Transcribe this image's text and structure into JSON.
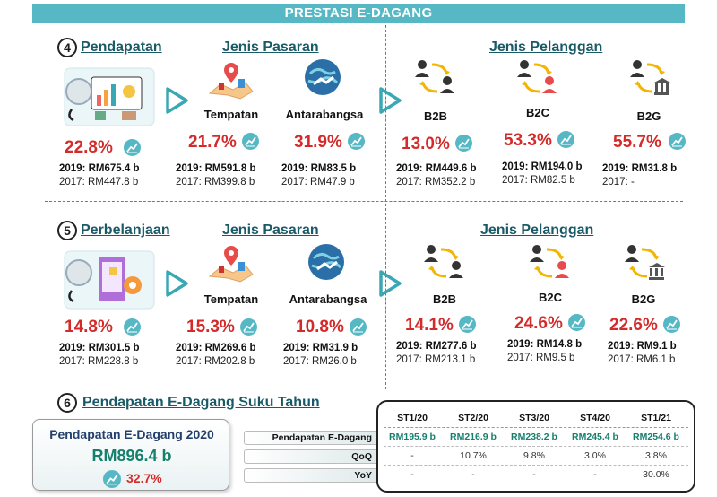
{
  "banner": "PRESTASI E-DAGANG",
  "colors": {
    "teal": "#55b8c4",
    "red": "#d42a2a",
    "title": "#1a5a66",
    "value_green": "#15806e"
  },
  "sec4": {
    "num": "4",
    "title": "Pendapatan",
    "market_title": "Jenis Pasaran",
    "customer_title": "Jenis Pelanggan",
    "total": {
      "pct": "22.8%",
      "y2019": "2019: RM675.4 b",
      "y2017": "2017: RM447.8 b"
    },
    "tempatan": {
      "label": "Tempatan",
      "pct": "21.7%",
      "y2019": "2019: RM591.8 b",
      "y2017": "2017: RM399.8 b"
    },
    "antarabangsa": {
      "label": "Antarabangsa",
      "pct": "31.9%",
      "y2019": "2019: RM83.5  b",
      "y2017": "2017: RM47.9  b"
    },
    "b2b": {
      "label": "B2B",
      "pct": "13.0%",
      "y2019": "2019: RM449.6 b",
      "y2017": "2017: RM352.2 b"
    },
    "b2c": {
      "label": "B2C",
      "pct": "53.3%",
      "y2019": "2019: RM194.0 b",
      "y2017": "2017: RM82.5   b"
    },
    "b2g": {
      "label": "B2G",
      "pct": "55.7%",
      "y2019": "2019: RM31.8 b",
      "y2017": "2017:        -"
    }
  },
  "sec5": {
    "num": "5",
    "title": "Perbelanjaan",
    "market_title": "Jenis Pasaran",
    "customer_title": "Jenis Pelanggan",
    "total": {
      "pct": "14.8%",
      "y2019": "2019: RM301.5 b",
      "y2017": "2017: RM228.8 b"
    },
    "tempatan": {
      "label": "Tempatan",
      "pct": "15.3%",
      "y2019": "2019: RM269.6 b",
      "y2017": "2017: RM202.8 b"
    },
    "antarabangsa": {
      "label": "Antarabangsa",
      "pct": "10.8%",
      "y2019": "2019: RM31.9 b",
      "y2017": "2017: RM26.0 b"
    },
    "b2b": {
      "label": "B2B",
      "pct": "14.1%",
      "y2019": "2019: RM277.6 b",
      "y2017": "2017: RM213.1 b"
    },
    "b2c": {
      "label": "B2C",
      "pct": "24.6%",
      "y2019": "2019: RM14.8 b",
      "y2017": "2017: RM9.5   b"
    },
    "b2g": {
      "label": "B2G",
      "pct": "22.6%",
      "y2019": "2019: RM9.1 b",
      "y2017": "2017: RM6.1 b"
    }
  },
  "sec6": {
    "num": "6",
    "title": "Pendapatan E-Dagang Suku Tahun",
    "kpi_title": "Pendapatan E-Dagang 2020",
    "kpi_value": "RM896.4 b",
    "kpi_pct": "32.7%",
    "row_labels": [
      "Pendapatan E-Dagang",
      "QoQ",
      "YoY"
    ],
    "columns": [
      "ST1/20",
      "ST2/20",
      "ST3/20",
      "ST4/20",
      "ST1/21"
    ],
    "values": [
      "RM195.9 b",
      "RM216.9 b",
      "RM238.2 b",
      "RM245.4 b",
      "RM254.6 b"
    ],
    "qoq": [
      "-",
      "10.7%",
      "9.8%",
      "3.0%",
      "3.8%"
    ],
    "yoy": [
      "-",
      "-",
      "-",
      "-",
      "30.0%"
    ]
  }
}
